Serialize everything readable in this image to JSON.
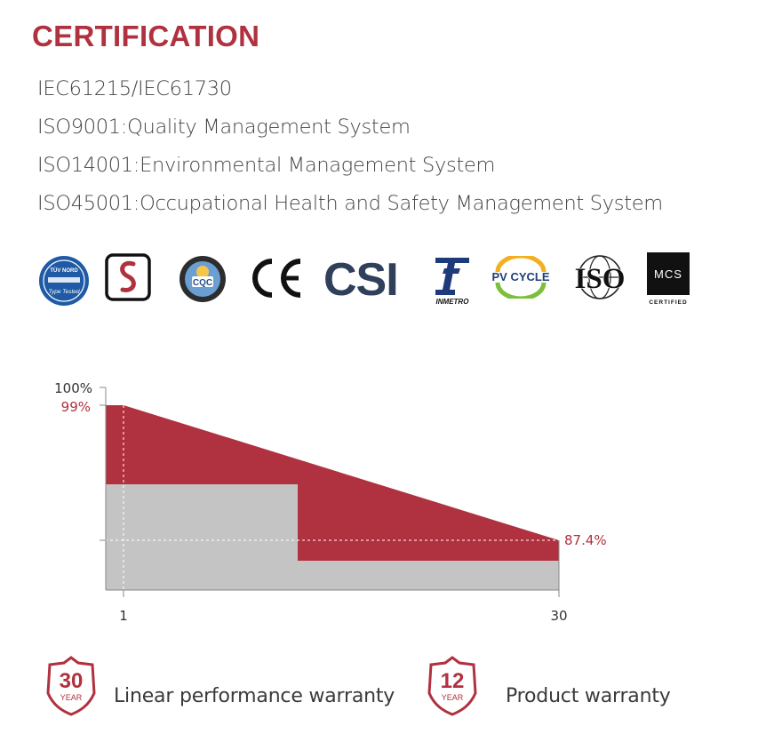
{
  "title": "CERTIFICATION",
  "certifications": [
    "IEC61215/IEC61730",
    "ISO9001:Quality Management System",
    "ISO14001:Environmental Management System",
    "ISO45001:Occupational Health and Safety Management System"
  ],
  "logos": {
    "tuv_top": "TÜV NORD",
    "tuv_bottom": "Type Tested",
    "cqc": "CQC",
    "ce": "CE",
    "csi": "CSI",
    "inmetro": "INMETRO",
    "pvcycle": "PV CYCLE",
    "iso": "ISO",
    "mcs": "MCS",
    "mcs_sub": "CERTIFIED"
  },
  "colors": {
    "accent": "#b0313f",
    "grey_area": "#c4c4c4",
    "text": "#3a3a3a"
  },
  "chart_data": {
    "type": "area",
    "x_ticks": [
      "1",
      "30"
    ],
    "y_ticks": [
      "100%"
    ],
    "series": [
      {
        "x": [
          1,
          30
        ],
        "values": [
          99,
          87.4
        ]
      }
    ],
    "annotations": [
      "99%",
      "87.4%"
    ]
  },
  "warranty": [
    {
      "number": "30",
      "unit": "YEAR",
      "label": "Linear performance warranty"
    },
    {
      "number": "12",
      "unit": "YEAR",
      "label": "Product warranty"
    }
  ]
}
